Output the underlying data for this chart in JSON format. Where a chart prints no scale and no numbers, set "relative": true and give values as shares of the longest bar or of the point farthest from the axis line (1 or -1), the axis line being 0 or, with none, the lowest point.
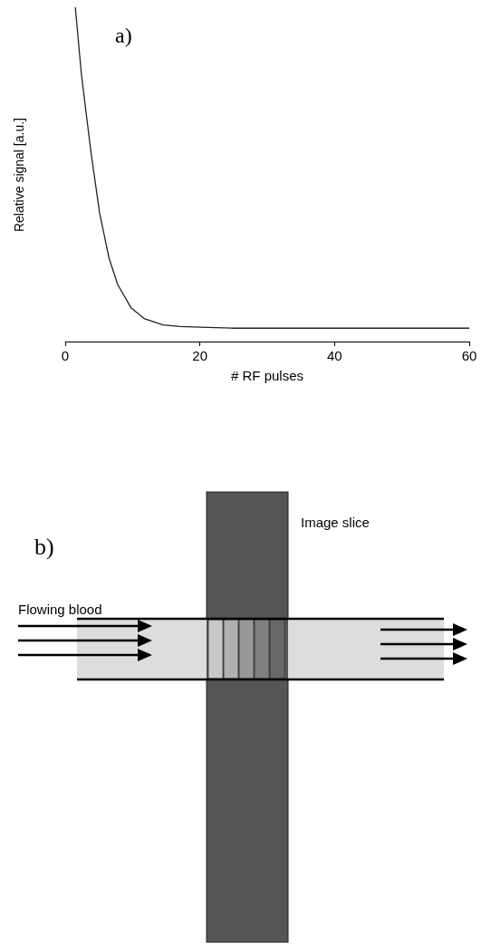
{
  "chart_data": [
    {
      "type": "line",
      "title": "a)",
      "xlabel": "# RF pulses",
      "ylabel": "Relative signal [a.u.]",
      "relative": true,
      "x": [
        1.5,
        2.4,
        3.8,
        5.1,
        6.5,
        7.8,
        9.8,
        11.8,
        14.5,
        17,
        20,
        25,
        30,
        40,
        50,
        60
      ],
      "values": [
        1,
        0.8,
        0.57,
        0.385,
        0.25,
        0.17,
        0.1,
        0.068,
        0.05,
        0.045,
        0.043,
        0.04,
        0.04,
        0.04,
        0.04,
        0.04
      ],
      "color": "#222222",
      "marker": "none",
      "line_style": "solid",
      "xlim": [
        0,
        60
      ],
      "xticks": [
        0,
        20,
        40,
        60
      ],
      "grid": false
    },
    {
      "type": "other",
      "title": "b)",
      "annotations": [
        "Image slice",
        "Flowing blood"
      ]
    }
  ]
}
